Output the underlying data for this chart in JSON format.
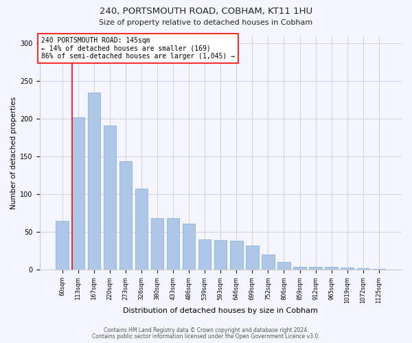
{
  "title1": "240, PORTSMOUTH ROAD, COBHAM, KT11 1HU",
  "title2": "Size of property relative to detached houses in Cobham",
  "xlabel": "Distribution of detached houses by size in Cobham",
  "ylabel": "Number of detached properties",
  "categories": [
    "60sqm",
    "113sqm",
    "167sqm",
    "220sqm",
    "273sqm",
    "326sqm",
    "380sqm",
    "433sqm",
    "486sqm",
    "539sqm",
    "593sqm",
    "646sqm",
    "699sqm",
    "752sqm",
    "806sqm",
    "859sqm",
    "912sqm",
    "965sqm",
    "1019sqm",
    "1072sqm",
    "1125sqm"
  ],
  "values": [
    65,
    202,
    235,
    191,
    144,
    108,
    68,
    68,
    61,
    40,
    39,
    38,
    32,
    20,
    10,
    4,
    4,
    4,
    3,
    2,
    1
  ],
  "bar_color": "#aec6e8",
  "bar_edge_color": "#7aadd4",
  "vline_bar_index": 1,
  "vline_color": "red",
  "annotation_text": "240 PORTSMOUTH ROAD: 145sqm\n← 14% of detached houses are smaller (169)\n86% of semi-detached houses are larger (1,045) →",
  "annotation_box_color": "white",
  "annotation_box_edge": "red",
  "ylim": [
    0,
    310
  ],
  "yticks": [
    0,
    50,
    100,
    150,
    200,
    250,
    300
  ],
  "grid_color": "#cccccc",
  "bg_color": "#f5f5ff",
  "footer1": "Contains HM Land Registry data © Crown copyright and database right 2024.",
  "footer2": "Contains public sector information licensed under the Open Government Licence v3.0.",
  "title1_fontsize": 9.5,
  "title2_fontsize": 8,
  "xlabel_fontsize": 8,
  "ylabel_fontsize": 7.5,
  "tick_fontsize": 6,
  "annotation_fontsize": 7,
  "footer_fontsize": 5.5
}
